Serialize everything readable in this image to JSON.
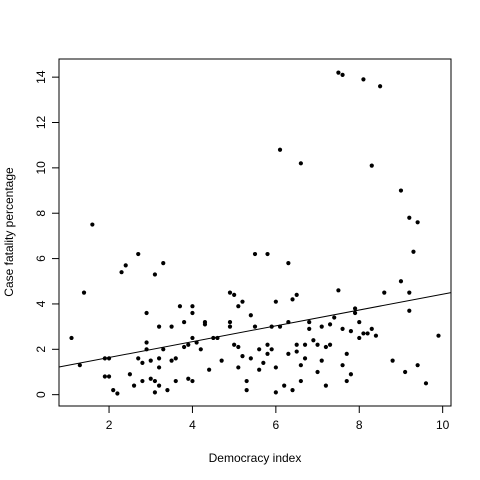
{
  "chart_data": {
    "type": "scatter",
    "title": "",
    "xlabel": "Democracy index",
    "ylabel": "Case fatality percentage",
    "xlim": [
      0.8,
      10.2
    ],
    "ylim": [
      -0.5,
      14.8
    ],
    "xticks": [
      2,
      4,
      6,
      8,
      10
    ],
    "yticks": [
      0,
      2,
      4,
      6,
      8,
      10,
      12,
      14
    ],
    "grid": false,
    "legend": "none",
    "point_color": "#000000",
    "fit_line": {
      "x": [
        0.8,
        10.2
      ],
      "y": [
        1.22,
        4.5
      ]
    },
    "points": [
      [
        1.1,
        2.5
      ],
      [
        1.3,
        1.3
      ],
      [
        1.4,
        4.5
      ],
      [
        1.6,
        7.5
      ],
      [
        1.9,
        0.8
      ],
      [
        1.9,
        1.6
      ],
      [
        2.0,
        1.6
      ],
      [
        2.0,
        0.8
      ],
      [
        2.1,
        0.2
      ],
      [
        2.2,
        0.05
      ],
      [
        2.3,
        5.4
      ],
      [
        2.4,
        5.7
      ],
      [
        2.5,
        0.9
      ],
      [
        2.6,
        0.4
      ],
      [
        2.7,
        1.6
      ],
      [
        2.7,
        6.2
      ],
      [
        2.8,
        0.6
      ],
      [
        2.8,
        1.4
      ],
      [
        2.9,
        3.6
      ],
      [
        2.9,
        2.3
      ],
      [
        2.9,
        2.0
      ],
      [
        3.0,
        0.7
      ],
      [
        3.0,
        1.5
      ],
      [
        3.1,
        5.3
      ],
      [
        3.1,
        0.1
      ],
      [
        3.1,
        0.6
      ],
      [
        3.2,
        0.4
      ],
      [
        3.2,
        1.6
      ],
      [
        3.2,
        1.2
      ],
      [
        3.2,
        3.0
      ],
      [
        3.3,
        2.0
      ],
      [
        3.3,
        5.8
      ],
      [
        3.4,
        0.2
      ],
      [
        3.5,
        1.5
      ],
      [
        3.5,
        3.0
      ],
      [
        3.6,
        1.6
      ],
      [
        3.6,
        0.6
      ],
      [
        3.7,
        3.9
      ],
      [
        3.8,
        2.1
      ],
      [
        3.8,
        3.2
      ],
      [
        3.9,
        2.2
      ],
      [
        3.9,
        0.7
      ],
      [
        4.0,
        3.9
      ],
      [
        4.0,
        2.5
      ],
      [
        4.0,
        3.6
      ],
      [
        4.0,
        0.6
      ],
      [
        4.1,
        2.3
      ],
      [
        4.2,
        2.0
      ],
      [
        4.3,
        3.2
      ],
      [
        4.3,
        3.1
      ],
      [
        4.4,
        1.1
      ],
      [
        4.5,
        2.5
      ],
      [
        4.6,
        2.5
      ],
      [
        4.7,
        1.5
      ],
      [
        4.9,
        4.5
      ],
      [
        4.9,
        3.2
      ],
      [
        4.9,
        3.0
      ],
      [
        5.0,
        2.2
      ],
      [
        5.0,
        4.4
      ],
      [
        5.1,
        3.9
      ],
      [
        5.1,
        1.2
      ],
      [
        5.1,
        2.1
      ],
      [
        5.2,
        4.1
      ],
      [
        5.2,
        1.7
      ],
      [
        5.3,
        0.2
      ],
      [
        5.3,
        0.6
      ],
      [
        5.4,
        3.5
      ],
      [
        5.4,
        1.6
      ],
      [
        5.5,
        6.2
      ],
      [
        5.5,
        3.0
      ],
      [
        5.6,
        2.0
      ],
      [
        5.6,
        1.1
      ],
      [
        5.7,
        1.4
      ],
      [
        5.8,
        6.2
      ],
      [
        5.8,
        2.2
      ],
      [
        5.8,
        1.8
      ],
      [
        5.9,
        3.0
      ],
      [
        5.9,
        2.0
      ],
      [
        6.0,
        4.1
      ],
      [
        6.0,
        0.1
      ],
      [
        6.0,
        1.2
      ],
      [
        6.1,
        10.8
      ],
      [
        6.1,
        3.0
      ],
      [
        6.2,
        0.4
      ],
      [
        6.3,
        5.8
      ],
      [
        6.3,
        1.8
      ],
      [
        6.3,
        3.2
      ],
      [
        6.4,
        4.2
      ],
      [
        6.4,
        0.2
      ],
      [
        6.5,
        4.4
      ],
      [
        6.5,
        2.2
      ],
      [
        6.5,
        1.9
      ],
      [
        6.6,
        10.2
      ],
      [
        6.6,
        0.6
      ],
      [
        6.6,
        1.3
      ],
      [
        6.7,
        2.2
      ],
      [
        6.7,
        1.6
      ],
      [
        6.8,
        2.9
      ],
      [
        6.8,
        3.2
      ],
      [
        6.9,
        2.4
      ],
      [
        7.0,
        2.2
      ],
      [
        7.0,
        1.0
      ],
      [
        7.1,
        3.0
      ],
      [
        7.1,
        1.5
      ],
      [
        7.2,
        2.1
      ],
      [
        7.2,
        0.4
      ],
      [
        7.3,
        2.2
      ],
      [
        7.3,
        3.1
      ],
      [
        7.4,
        3.4
      ],
      [
        7.5,
        14.2
      ],
      [
        7.5,
        4.6
      ],
      [
        7.6,
        2.9
      ],
      [
        7.6,
        14.1
      ],
      [
        7.6,
        1.3
      ],
      [
        7.7,
        0.6
      ],
      [
        7.7,
        1.8
      ],
      [
        7.8,
        2.8
      ],
      [
        7.8,
        0.9
      ],
      [
        7.9,
        3.6
      ],
      [
        7.9,
        3.8
      ],
      [
        8.0,
        3.2
      ],
      [
        8.0,
        2.5
      ],
      [
        8.1,
        13.9
      ],
      [
        8.1,
        2.7
      ],
      [
        8.2,
        2.7
      ],
      [
        8.3,
        10.1
      ],
      [
        8.3,
        2.9
      ],
      [
        8.4,
        2.6
      ],
      [
        8.5,
        13.6
      ],
      [
        8.6,
        4.5
      ],
      [
        8.8,
        1.5
      ],
      [
        9.0,
        9.0
      ],
      [
        9.0,
        5.0
      ],
      [
        9.1,
        1.0
      ],
      [
        9.2,
        7.8
      ],
      [
        9.2,
        4.5
      ],
      [
        9.2,
        3.7
      ],
      [
        9.3,
        6.3
      ],
      [
        9.4,
        7.6
      ],
      [
        9.4,
        1.3
      ],
      [
        9.6,
        0.5
      ],
      [
        9.9,
        2.6
      ]
    ]
  }
}
